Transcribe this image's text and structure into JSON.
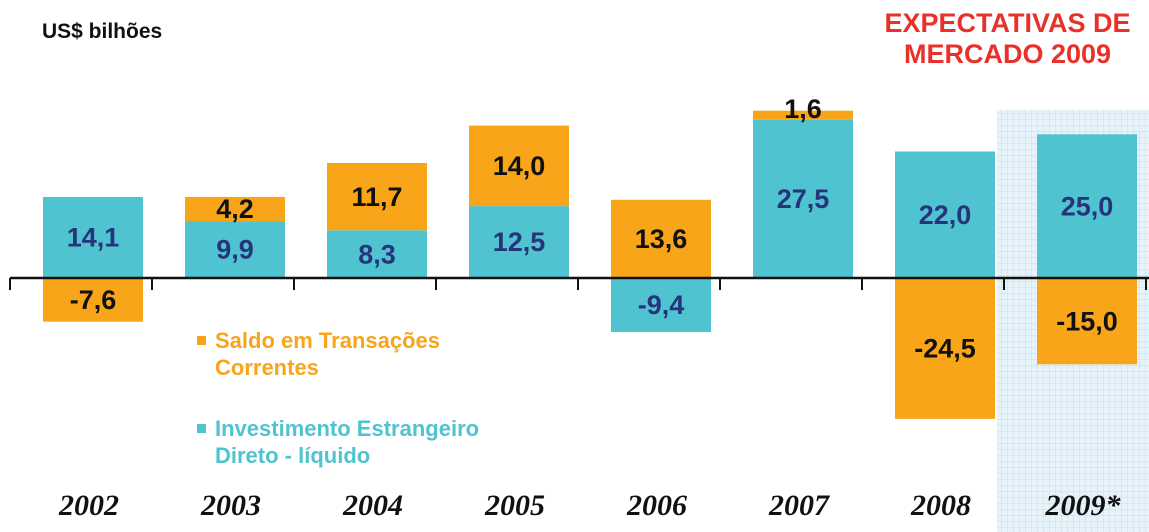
{
  "chart_data": {
    "type": "bar",
    "stacked": true,
    "unit_label": "US$ bilhões",
    "annotation": "EXPECTATIVAS DE MERCADO 2009",
    "categories": [
      "2002",
      "2003",
      "2004",
      "2005",
      "2006",
      "2007",
      "2008",
      "2009*"
    ],
    "highlight_category": "2009*",
    "series": [
      {
        "name": "Saldo em Transações Correntes",
        "color": "#f9a51a",
        "label_color": "#111111",
        "values": [
          -7.6,
          4.2,
          11.7,
          14.0,
          13.6,
          1.6,
          -24.5,
          -15.0
        ],
        "value_labels": [
          "-7,6",
          "4,2",
          "11,7",
          "14,0",
          "13,6",
          "1,6",
          "-24,5",
          "-15,0"
        ]
      },
      {
        "name": "Investimento Estrangeiro Direto - líquido",
        "color": "#4fc3cf",
        "label_color": "#27337a",
        "values": [
          14.1,
          9.9,
          8.3,
          12.5,
          -9.4,
          27.5,
          22.0,
          25.0
        ],
        "value_labels": [
          "14,1",
          "9,9",
          "8,3",
          "12,5",
          "-9,4",
          "27,5",
          "22,0",
          "25,0"
        ]
      }
    ],
    "ylim": [
      -40,
      45
    ]
  }
}
